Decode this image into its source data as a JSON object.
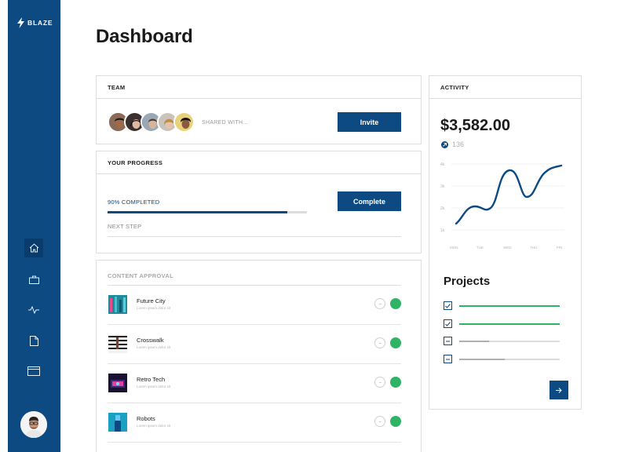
{
  "brand": {
    "name": "BLAZE"
  },
  "sidebar": {
    "items": [
      {
        "icon": "home-icon",
        "active": true
      },
      {
        "icon": "briefcase-icon",
        "active": false
      },
      {
        "icon": "activity-icon",
        "active": false
      },
      {
        "icon": "document-icon",
        "active": false
      },
      {
        "icon": "card-icon",
        "active": false
      }
    ],
    "avatar": "user-avatar"
  },
  "page": {
    "title": "Dashboard"
  },
  "team": {
    "title": "TEAM",
    "shared_with": "SHARED WITH...",
    "invite_label": "Invite",
    "members_shown": 5
  },
  "progress": {
    "title": "YOUR PROGRESS",
    "completed_label": "90% COMPLETED",
    "value": 0.9,
    "next_step_label": "NEXT STEP",
    "complete_label": "Complete"
  },
  "approval": {
    "title": "CONTENT APPROVAL",
    "items": [
      {
        "name": "Future City",
        "sub": "Lorem ipsum dolor sit"
      },
      {
        "name": "Crosswalk",
        "sub": "Lorem ipsum dolor sit"
      },
      {
        "name": "Retro Tech",
        "sub": "Lorem ipsum dolor sit"
      },
      {
        "name": "Robots",
        "sub": "Lorem ipsum dolor sit"
      }
    ]
  },
  "activity": {
    "title": "ACTIVITY",
    "amount": "$3,582.00",
    "delta": "136",
    "chart": {
      "y_ticks": [
        "4k",
        "3k",
        "2k",
        "1k"
      ],
      "x_ticks": [
        "MON",
        "TUE",
        "WED",
        "THU",
        "FRI"
      ]
    }
  },
  "projects": {
    "title": "Projects",
    "items": [
      {
        "checked": true,
        "progress": 1.0
      },
      {
        "checked": true,
        "progress": 1.0
      },
      {
        "checked": false,
        "progress": 0.3
      },
      {
        "checked": false,
        "progress": 0.45
      }
    ]
  },
  "colors": {
    "primary": "#0d4a82",
    "success": "#2fb466",
    "muted": "#b0b0b0"
  }
}
